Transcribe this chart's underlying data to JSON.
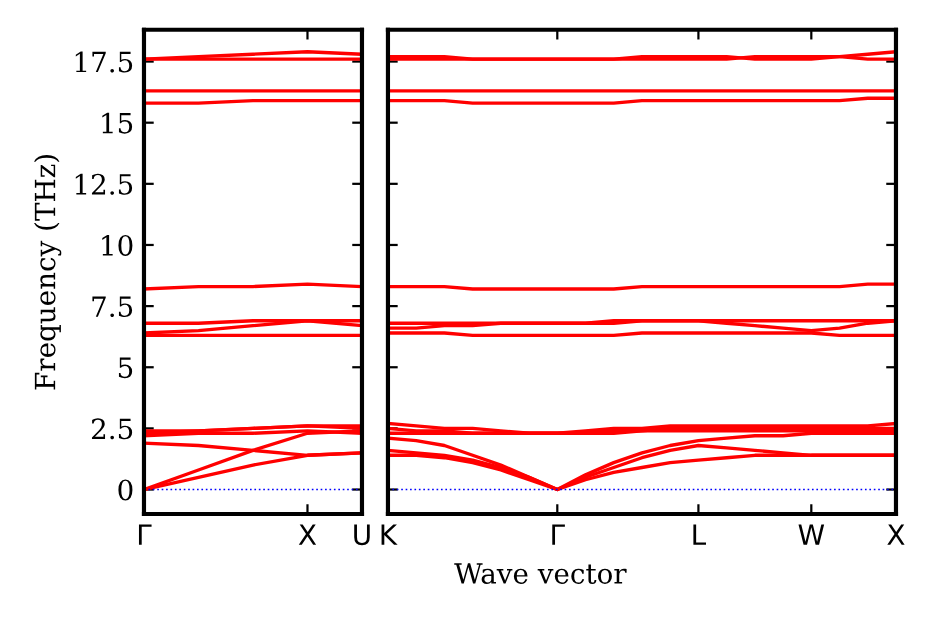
{
  "chart_data": [
    {
      "type": "line",
      "ylabel": "Frequency (THz)",
      "categories": [
        "Γ",
        null,
        null,
        "X",
        "U"
      ],
      "ylim": [
        -1,
        18.8
      ],
      "yticks": [
        0,
        2.5,
        5,
        7.5,
        10,
        12.5,
        15,
        17.5
      ],
      "grid": false,
      "legend": false,
      "line_style": "solid",
      "ref_lines": [
        {
          "axis": "y",
          "value": 0,
          "color": "#0000ff",
          "line_style": "dotted"
        }
      ],
      "series": [
        {
          "color": "#ff0000",
          "values": [
            0,
            0.5,
            1.0,
            1.4,
            1.5
          ]
        },
        {
          "color": "#ff0000",
          "values": [
            0,
            0.8,
            1.6,
            2.3,
            2.4
          ]
        },
        {
          "color": "#ff0000",
          "values": [
            1.9,
            1.8,
            1.6,
            1.4,
            1.5
          ]
        },
        {
          "color": "#ff0000",
          "values": [
            2.2,
            2.3,
            2.3,
            2.4,
            2.3
          ]
        },
        {
          "color": "#ff0000",
          "values": [
            2.3,
            2.4,
            2.5,
            2.6,
            2.6
          ]
        },
        {
          "color": "#ff0000",
          "values": [
            2.4,
            2.4,
            2.5,
            2.6,
            2.5
          ]
        },
        {
          "color": "#ff0000",
          "values": [
            6.3,
            6.3,
            6.3,
            6.3,
            6.3
          ]
        },
        {
          "color": "#ff0000",
          "values": [
            6.4,
            6.5,
            6.7,
            6.9,
            6.7
          ]
        },
        {
          "color": "#ff0000",
          "values": [
            6.8,
            6.8,
            6.9,
            6.9,
            6.9
          ]
        },
        {
          "color": "#ff0000",
          "values": [
            8.2,
            8.3,
            8.3,
            8.4,
            8.3
          ]
        },
        {
          "color": "#ff0000",
          "values": [
            15.8,
            15.8,
            15.9,
            15.9,
            15.9
          ]
        },
        {
          "color": "#ff0000",
          "values": [
            16.3,
            16.3,
            16.3,
            16.3,
            16.3
          ]
        },
        {
          "color": "#ff0000",
          "values": [
            17.6,
            17.6,
            17.6,
            17.6,
            17.6
          ]
        },
        {
          "color": "#ff0000",
          "values": [
            17.6,
            17.7,
            17.8,
            17.9,
            17.8
          ]
        }
      ]
    },
    {
      "type": "line",
      "xlabel": "Wave vector",
      "categories": [
        "K",
        null,
        null,
        null,
        null,
        null,
        "Γ",
        null,
        null,
        null,
        null,
        "L",
        null,
        null,
        null,
        "W",
        null,
        null,
        "X"
      ],
      "ylim": [
        -1,
        18.8
      ],
      "yticks": [
        0,
        2.5,
        5,
        7.5,
        10,
        12.5,
        15,
        17.5
      ],
      "tick_labels": "x",
      "grid": false,
      "legend": false,
      "line_style": "solid",
      "ref_lines": [
        {
          "axis": "y",
          "value": 0,
          "color": "#0000ff",
          "line_style": "dotted"
        }
      ],
      "series": [
        {
          "color": "#ff0000",
          "values": [
            1.4,
            1.4,
            1.3,
            1.1,
            0.8,
            0.4,
            0,
            0.4,
            0.7,
            0.9,
            1.1,
            1.2,
            1.3,
            1.4,
            1.4,
            1.4,
            1.4,
            1.4,
            1.4
          ]
        },
        {
          "color": "#ff0000",
          "values": [
            1.6,
            1.5,
            1.4,
            1.2,
            0.9,
            0.5,
            0,
            0.5,
            0.9,
            1.3,
            1.6,
            1.8,
            1.7,
            1.6,
            1.5,
            1.4,
            1.4,
            1.4,
            1.4
          ]
        },
        {
          "color": "#ff0000",
          "values": [
            2.1,
            2.0,
            1.8,
            1.4,
            1.0,
            0.5,
            0,
            0.6,
            1.1,
            1.5,
            1.8,
            2.0,
            2.1,
            2.2,
            2.2,
            2.3,
            2.3,
            2.3,
            2.3
          ]
        },
        {
          "color": "#ff0000",
          "values": [
            2.3,
            2.3,
            2.3,
            2.3,
            2.3,
            2.3,
            2.3,
            2.3,
            2.3,
            2.4,
            2.4,
            2.4,
            2.4,
            2.4,
            2.4,
            2.4,
            2.4,
            2.4,
            2.4
          ]
        },
        {
          "color": "#ff0000",
          "values": [
            2.5,
            2.4,
            2.4,
            2.3,
            2.3,
            2.3,
            2.3,
            2.3,
            2.4,
            2.4,
            2.5,
            2.5,
            2.5,
            2.5,
            2.5,
            2.5,
            2.5,
            2.5,
            2.5
          ]
        },
        {
          "color": "#ff0000",
          "values": [
            2.7,
            2.6,
            2.5,
            2.5,
            2.4,
            2.3,
            2.3,
            2.4,
            2.5,
            2.5,
            2.6,
            2.6,
            2.6,
            2.6,
            2.6,
            2.6,
            2.6,
            2.6,
            2.7
          ]
        },
        {
          "color": "#ff0000",
          "values": [
            6.4,
            6.4,
            6.4,
            6.3,
            6.3,
            6.3,
            6.3,
            6.3,
            6.3,
            6.4,
            6.4,
            6.4,
            6.4,
            6.4,
            6.4,
            6.4,
            6.3,
            6.3,
            6.3
          ]
        },
        {
          "color": "#ff0000",
          "values": [
            6.6,
            6.6,
            6.7,
            6.7,
            6.8,
            6.8,
            6.8,
            6.8,
            6.9,
            6.9,
            6.9,
            6.9,
            6.8,
            6.7,
            6.6,
            6.5,
            6.6,
            6.8,
            6.9
          ]
        },
        {
          "color": "#ff0000",
          "values": [
            6.8,
            6.8,
            6.8,
            6.8,
            6.8,
            6.8,
            6.8,
            6.8,
            6.8,
            6.9,
            6.9,
            6.9,
            6.9,
            6.9,
            6.9,
            6.9,
            6.9,
            6.9,
            6.9
          ]
        },
        {
          "color": "#ff0000",
          "values": [
            8.3,
            8.3,
            8.3,
            8.2,
            8.2,
            8.2,
            8.2,
            8.2,
            8.2,
            8.3,
            8.3,
            8.3,
            8.3,
            8.3,
            8.3,
            8.3,
            8.3,
            8.4,
            8.4
          ]
        },
        {
          "color": "#ff0000",
          "values": [
            15.9,
            15.9,
            15.9,
            15.8,
            15.8,
            15.8,
            15.8,
            15.8,
            15.8,
            15.9,
            15.9,
            15.9,
            15.9,
            15.9,
            15.9,
            15.9,
            15.9,
            16.0,
            16.0
          ]
        },
        {
          "color": "#ff0000",
          "values": [
            16.3,
            16.3,
            16.3,
            16.3,
            16.3,
            16.3,
            16.3,
            16.3,
            16.3,
            16.3,
            16.3,
            16.3,
            16.3,
            16.3,
            16.3,
            16.3,
            16.3,
            16.3,
            16.3
          ]
        },
        {
          "color": "#ff0000",
          "values": [
            17.6,
            17.6,
            17.6,
            17.6,
            17.6,
            17.6,
            17.6,
            17.6,
            17.6,
            17.6,
            17.6,
            17.6,
            17.6,
            17.7,
            17.7,
            17.7,
            17.7,
            17.6,
            17.6
          ]
        },
        {
          "color": "#ff0000",
          "values": [
            17.7,
            17.7,
            17.7,
            17.6,
            17.6,
            17.6,
            17.6,
            17.6,
            17.6,
            17.7,
            17.7,
            17.7,
            17.7,
            17.6,
            17.6,
            17.6,
            17.7,
            17.8,
            17.9
          ]
        }
      ]
    }
  ]
}
